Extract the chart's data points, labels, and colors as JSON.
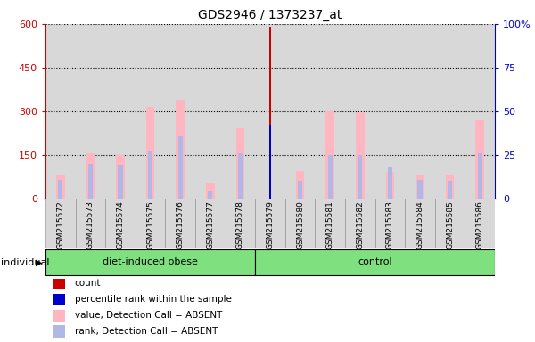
{
  "title": "GDS2946 / 1373237_at",
  "samples": [
    "GSM215572",
    "GSM215573",
    "GSM215574",
    "GSM215575",
    "GSM215576",
    "GSM215577",
    "GSM215578",
    "GSM215579",
    "GSM215580",
    "GSM215581",
    "GSM215582",
    "GSM215583",
    "GSM215584",
    "GSM215585",
    "GSM215586"
  ],
  "value_absent": [
    80,
    155,
    150,
    315,
    340,
    50,
    240,
    0,
    95,
    300,
    295,
    90,
    80,
    80,
    270
  ],
  "rank_absent": [
    65,
    120,
    115,
    165,
    215,
    28,
    155,
    0,
    60,
    150,
    150,
    108,
    65,
    60,
    155
  ],
  "count": [
    0,
    0,
    0,
    0,
    0,
    0,
    0,
    590,
    0,
    0,
    0,
    0,
    0,
    0,
    0
  ],
  "percentile_rank": [
    0,
    0,
    0,
    0,
    0,
    0,
    0,
    42,
    0,
    0,
    0,
    0,
    0,
    0,
    0
  ],
  "ylim_left": [
    0,
    600
  ],
  "ylim_right": [
    0,
    100
  ],
  "yticks_left": [
    0,
    150,
    300,
    450,
    600
  ],
  "yticks_right": [
    0,
    25,
    50,
    75,
    100
  ],
  "group_spans": [
    {
      "label": "diet-induced obese",
      "start": 0,
      "end": 7
    },
    {
      "label": "control",
      "start": 7,
      "end": 15
    }
  ],
  "color_value_absent": "#FFB6C1",
  "color_rank_absent": "#B0B8E8",
  "color_count": "#CC0000",
  "color_percentile": "#0000CC",
  "left_axis_color": "#CC0000",
  "right_axis_color": "#0000CC",
  "background_sample": "#D8D8D8",
  "background_group": "#7EE07E",
  "legend_items": [
    {
      "color": "#CC0000",
      "label": "count"
    },
    {
      "color": "#0000CC",
      "label": "percentile rank within the sample"
    },
    {
      "color": "#FFB6C1",
      "label": "value, Detection Call = ABSENT"
    },
    {
      "color": "#B0B8E8",
      "label": "rank, Detection Call = ABSENT"
    }
  ]
}
